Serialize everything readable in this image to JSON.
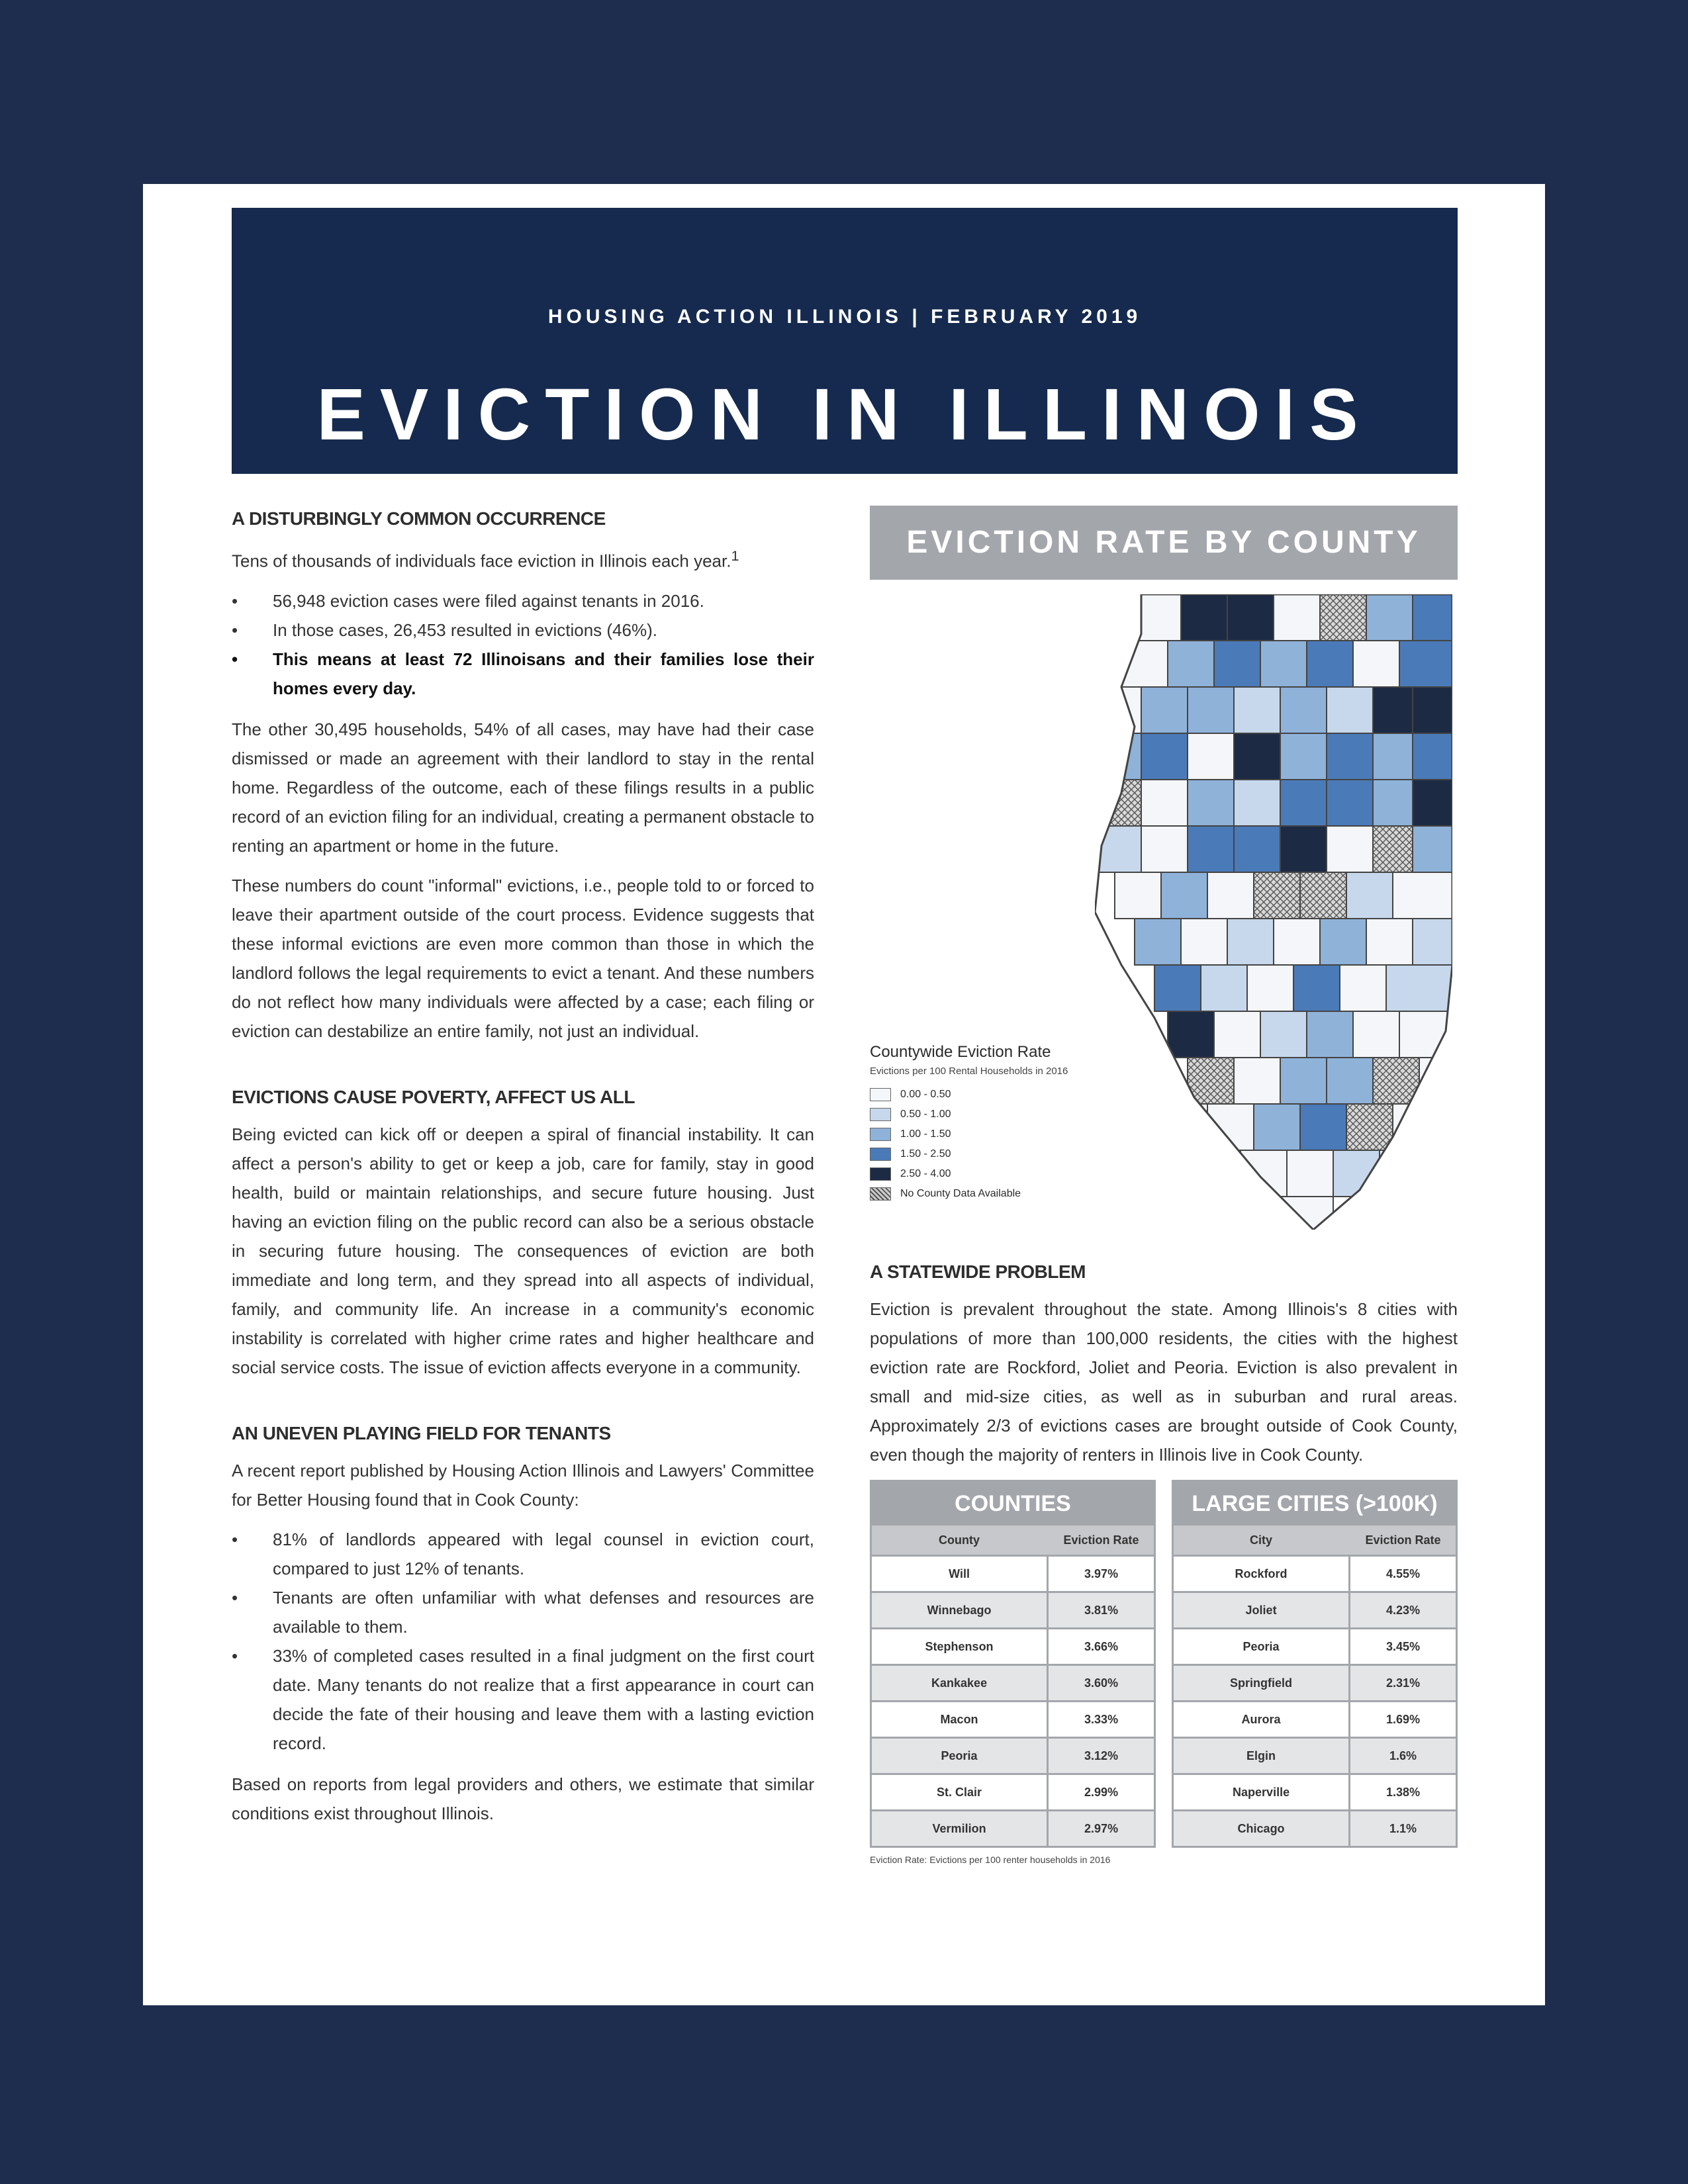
{
  "header": {
    "kicker": "HOUSING ACTION ILLINOIS | FEBRUARY 2019",
    "title": "EVICTION IN ILLINOIS"
  },
  "section1": {
    "heading": "A DISTURBINGLY COMMON OCCURRENCE",
    "intro": "Tens of thousands of individuals face eviction in Illinois each year.",
    "bullets": [
      "56,948 eviction cases were filed against tenants in 2016.",
      "In those cases, 26,453 resulted in evictions (46%).",
      "This means at least 72 Illinoisans and their families lose their homes every day."
    ],
    "para1": "The other 30,495 households, 54% of all cases, may have had their case dismissed or made an agreement with their landlord to stay in the rental home. Regardless of the outcome, each of these filings results in a public record of an eviction filing for an individual, creating a permanent obstacle to renting an apartment or home in the future.",
    "para2": "These numbers do count \"informal\" evictions, i.e., people told to or forced to leave their apartment outside of the court process. Evidence suggests that these informal evictions are even more common than those in which the landlord follows the legal requirements to evict a tenant. And these numbers do not reflect how many individuals were affected by a case; each filing or eviction can destabilize an entire family, not just an individual."
  },
  "section2": {
    "heading": "EVICTIONS CAUSE POVERTY, AFFECT US ALL",
    "para": "Being evicted can kick off or deepen a spiral of financial instability. It can affect a person's ability to get or keep a job, care for family, stay in good health, build or maintain relationships, and secure future housing. Just having an eviction filing on the public record can also be a serious obstacle in securing future housing. The consequences of eviction are both immediate and long term, and they spread into all aspects of individual, family, and community life. An increase in a community's economic instability is correlated with higher crime rates and higher healthcare and social service costs. The issue of eviction affects everyone in a community."
  },
  "section3": {
    "heading": "AN UNEVEN PLAYING FIELD FOR TENANTS",
    "intro": "A recent report published by Housing Action Illinois and Lawyers' Committee for Better Housing found that in Cook County:",
    "bullets": [
      "81% of landlords appeared with legal counsel in eviction court, compared to just 12% of tenants.",
      "Tenants are often unfamiliar with what defenses and resources are available to them.",
      "33% of completed cases resulted in a final judgment on the first court date. Many tenants do not realize that a first appearance in court can decide the fate of their housing and leave them with a lasting eviction record."
    ],
    "closing": "Based on reports from legal providers and others, we estimate that similar conditions exist throughout Illinois."
  },
  "map": {
    "title": "EVICTION RATE BY COUNTY",
    "legend_title": "Countywide Eviction Rate",
    "legend_subtitle": "Evictions per 100 Rental Households in 2016",
    "legend": [
      {
        "label": "0.00 - 0.50",
        "color": "#f4f6fa"
      },
      {
        "label": "0.50 - 1.00",
        "color": "#c7d8ec"
      },
      {
        "label": "1.00 - 1.50",
        "color": "#8fb2d9"
      },
      {
        "label": "1.50 - 2.50",
        "color": "#4b7ab8"
      },
      {
        "label": "2.50 - 4.00",
        "color": "#1c2a44"
      },
      {
        "label": "No County Data Available",
        "color": "#bbbbbb"
      }
    ]
  },
  "section4": {
    "heading": "A STATEWIDE PROBLEM",
    "para": "Eviction is prevalent throughout the state. Among Illinois's 8 cities with populations of more than 100,000 residents, the cities with the highest eviction rate are Rockford, Joliet and Peoria. Eviction is also prevalent in small and mid-size cities, as well as in suburban and rural areas. Approximately 2/3 of evictions cases are brought outside of Cook County, even though the majority of renters in Illinois live in Cook County."
  },
  "counties_table": {
    "title": "COUNTIES",
    "col1": "County",
    "col2": "Eviction Rate",
    "rows": [
      {
        "name": "Will",
        "rate": "3.97%"
      },
      {
        "name": "Winnebago",
        "rate": "3.81%"
      },
      {
        "name": "Stephenson",
        "rate": "3.66%"
      },
      {
        "name": "Kankakee",
        "rate": "3.60%"
      },
      {
        "name": "Macon",
        "rate": "3.33%"
      },
      {
        "name": "Peoria",
        "rate": "3.12%"
      },
      {
        "name": "St. Clair",
        "rate": "2.99%"
      },
      {
        "name": "Vermilion",
        "rate": "2.97%"
      }
    ]
  },
  "cities_table": {
    "title": "LARGE CITIES (>100K)",
    "col1": "City",
    "col2": "Eviction Rate",
    "rows": [
      {
        "name": "Rockford",
        "rate": "4.55%"
      },
      {
        "name": "Joliet",
        "rate": "4.23%"
      },
      {
        "name": "Peoria",
        "rate": "3.45%"
      },
      {
        "name": "Springfield",
        "rate": "2.31%"
      },
      {
        "name": "Aurora",
        "rate": "1.69%"
      },
      {
        "name": "Elgin",
        "rate": "1.6%"
      },
      {
        "name": "Naperville",
        "rate": "1.38%"
      },
      {
        "name": "Chicago",
        "rate": "1.1%"
      }
    ]
  },
  "table_note": "Eviction Rate: Evictions per 100 renter households in 2016"
}
